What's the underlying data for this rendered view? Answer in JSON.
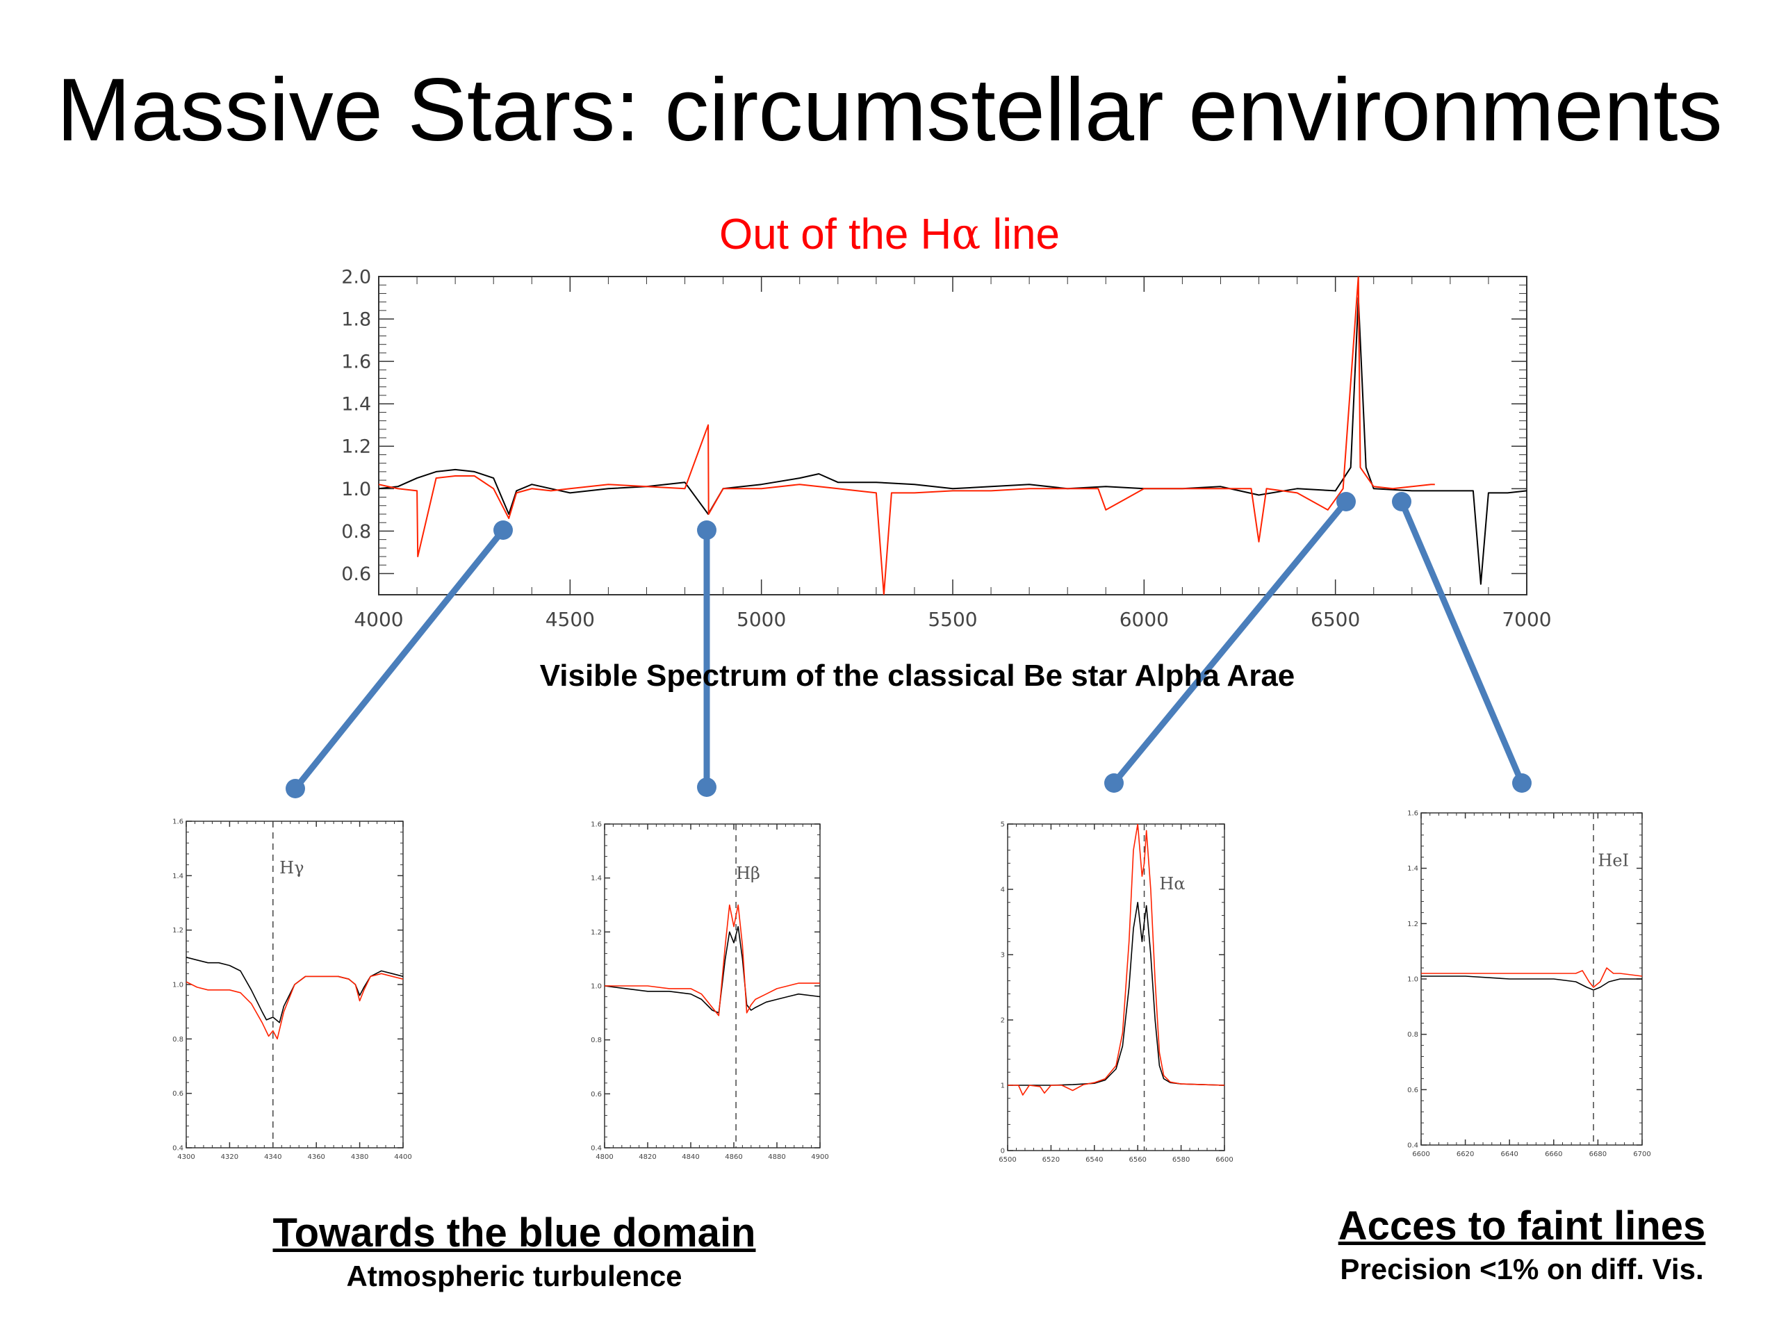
{
  "title": "Massive Stars: circumstellar environments",
  "subtitle_pre": "Out of the H",
  "subtitle_greek": "α",
  "subtitle_post": " line",
  "caption": "Visible Spectrum of the classical Be star Alpha Arae",
  "notes": {
    "left_heading": "Towards the blue domain",
    "left_sub": "Atmospheric turbulence",
    "right_heading": "Acces to faint lines",
    "right_sub": "Precision <1% on diff. Vis."
  },
  "colors": {
    "series_black": "#000000",
    "series_red": "#ff2200",
    "connector": "#4a7ebb",
    "subtitle": "#ff0000"
  },
  "chart_data": [
    {
      "type": "line",
      "id": "main",
      "xlim": [
        4000,
        7000
      ],
      "ylim": [
        0.5,
        2.0
      ],
      "xticks": [
        4000,
        4500,
        5000,
        5500,
        6000,
        6500,
        7000
      ],
      "yticks": [
        0.6,
        0.8,
        1.0,
        1.2,
        1.4,
        1.6,
        1.8,
        2.0
      ],
      "ytick_labels": [
        "0.6",
        "0.8",
        "1.0",
        "1.2",
        "1.4",
        "1.6",
        "1.8",
        "2.0"
      ],
      "series": [
        {
          "color": "#000000",
          "x": [
            4000,
            4050,
            4100,
            4150,
            4200,
            4250,
            4300,
            4340,
            4360,
            4400,
            4450,
            4500,
            4600,
            4700,
            4800,
            4861,
            4900,
            5000,
            5100,
            5150,
            5200,
            5300,
            5400,
            5500,
            5600,
            5700,
            5800,
            5900,
            6000,
            6100,
            6200,
            6300,
            6400,
            6500,
            6540,
            6560,
            6580,
            6600,
            6700,
            6800,
            6860,
            6880,
            6900,
            6950,
            7000
          ],
          "y": [
            1.0,
            1.01,
            1.05,
            1.08,
            1.09,
            1.08,
            1.05,
            0.88,
            0.99,
            1.02,
            1.0,
            0.98,
            1.0,
            1.01,
            1.03,
            0.88,
            1.0,
            1.02,
            1.05,
            1.07,
            1.03,
            1.03,
            1.02,
            1.0,
            1.01,
            1.02,
            1.0,
            1.01,
            1.0,
            1.0,
            1.01,
            0.97,
            1.0,
            0.99,
            1.1,
            1.9,
            1.1,
            1.0,
            0.99,
            0.99,
            0.99,
            0.55,
            0.98,
            0.98,
            0.99
          ]
        },
        {
          "color": "#ff2200",
          "x": [
            4000,
            4050,
            4100,
            4102,
            4150,
            4200,
            4250,
            4300,
            4340,
            4360,
            4400,
            4450,
            4500,
            4600,
            4700,
            4800,
            4861,
            4862,
            4900,
            5000,
            5100,
            5200,
            5300,
            5320,
            5340,
            5400,
            5500,
            5600,
            5700,
            5800,
            5880,
            5900,
            5950,
            6000,
            6100,
            6200,
            6280,
            6300,
            6320,
            6400,
            6480,
            6520,
            6560,
            6565,
            6600,
            6650,
            6700,
            6750,
            6760
          ],
          "y": [
            1.02,
            1.0,
            0.99,
            0.68,
            1.05,
            1.06,
            1.06,
            1.0,
            0.86,
            0.98,
            1.0,
            0.99,
            1.0,
            1.02,
            1.01,
            1.0,
            1.3,
            0.88,
            1.0,
            1.0,
            1.02,
            1.0,
            0.98,
            0.5,
            0.98,
            0.98,
            0.99,
            0.99,
            1.0,
            1.0,
            1.0,
            0.9,
            0.95,
            1.0,
            1.0,
            1.0,
            1.0,
            0.75,
            1.0,
            0.98,
            0.9,
            1.0,
            2.0,
            1.1,
            1.01,
            1.0,
            1.01,
            1.02,
            1.02
          ]
        }
      ]
    },
    {
      "type": "line",
      "id": "inset-hgamma",
      "line_label": "Hγ",
      "line_x": 4340,
      "xlim": [
        4300,
        4400
      ],
      "ylim": [
        0.4,
        1.6
      ],
      "xticks": [
        4300,
        4320,
        4340,
        4360,
        4380,
        4400
      ],
      "yticks": [
        0.4,
        0.6,
        0.8,
        1.0,
        1.2,
        1.4,
        1.6
      ],
      "ytick_labels": [
        "0.4",
        "0.6",
        "0.8",
        "1.0",
        "1.2",
        "1.4",
        "1.6"
      ],
      "series": [
        {
          "color": "#000000",
          "x": [
            4300,
            4305,
            4310,
            4315,
            4320,
            4325,
            4330,
            4335,
            4337,
            4340,
            4343,
            4345,
            4350,
            4355,
            4360,
            4365,
            4370,
            4375,
            4378,
            4380,
            4382,
            4385,
            4390,
            4395,
            4400
          ],
          "y": [
            1.1,
            1.09,
            1.08,
            1.08,
            1.07,
            1.05,
            0.98,
            0.9,
            0.87,
            0.88,
            0.86,
            0.92,
            1.0,
            1.03,
            1.03,
            1.03,
            1.03,
            1.02,
            1.0,
            0.96,
            0.99,
            1.03,
            1.05,
            1.04,
            1.03
          ]
        },
        {
          "color": "#ff2200",
          "x": [
            4300,
            4305,
            4310,
            4315,
            4320,
            4325,
            4330,
            4335,
            4338,
            4340,
            4342,
            4345,
            4350,
            4355,
            4360,
            4365,
            4370,
            4375,
            4378,
            4380,
            4382,
            4385,
            4390,
            4395,
            4400
          ],
          "y": [
            1.01,
            0.99,
            0.98,
            0.98,
            0.98,
            0.97,
            0.93,
            0.86,
            0.81,
            0.83,
            0.8,
            0.9,
            1.0,
            1.03,
            1.03,
            1.03,
            1.03,
            1.02,
            1.0,
            0.94,
            0.98,
            1.03,
            1.04,
            1.03,
            1.02
          ]
        }
      ]
    },
    {
      "type": "line",
      "id": "inset-hbeta",
      "line_label": "Hβ",
      "line_x": 4861,
      "xlim": [
        4800,
        4900
      ],
      "ylim": [
        0.4,
        1.6
      ],
      "xticks": [
        4800,
        4820,
        4840,
        4860,
        4880,
        4900
      ],
      "yticks": [
        0.4,
        0.6,
        0.8,
        1.0,
        1.2,
        1.4,
        1.6
      ],
      "ytick_labels": [
        "0.4",
        "0.6",
        "0.8",
        "1.0",
        "1.2",
        "1.4",
        "1.6"
      ],
      "series": [
        {
          "color": "#000000",
          "x": [
            4800,
            4810,
            4820,
            4830,
            4840,
            4845,
            4850,
            4853,
            4856,
            4858,
            4860,
            4862,
            4864,
            4866,
            4868,
            4870,
            4875,
            4880,
            4885,
            4890,
            4900
          ],
          "y": [
            1.0,
            0.99,
            0.98,
            0.98,
            0.97,
            0.95,
            0.91,
            0.9,
            1.1,
            1.2,
            1.16,
            1.22,
            1.1,
            0.93,
            0.91,
            0.92,
            0.94,
            0.95,
            0.96,
            0.97,
            0.96
          ]
        },
        {
          "color": "#ff2200",
          "x": [
            4800,
            4810,
            4820,
            4830,
            4840,
            4845,
            4850,
            4853,
            4856,
            4858,
            4860,
            4862,
            4864,
            4866,
            4868,
            4870,
            4875,
            4880,
            4885,
            4890,
            4900
          ],
          "y": [
            1.0,
            1.0,
            1.0,
            0.99,
            0.99,
            0.97,
            0.92,
            0.89,
            1.15,
            1.3,
            1.22,
            1.3,
            1.15,
            0.9,
            0.93,
            0.95,
            0.97,
            0.99,
            1.0,
            1.01,
            1.01
          ]
        }
      ]
    },
    {
      "type": "line",
      "id": "inset-halpha",
      "line_label": "Hα",
      "line_x": 6563,
      "xlim": [
        6500,
        6600
      ],
      "ylim": [
        0,
        5
      ],
      "xticks": [
        6500,
        6520,
        6540,
        6560,
        6580,
        6600
      ],
      "yticks": [
        0,
        1,
        2,
        3,
        4,
        5
      ],
      "ytick_labels": [
        "0",
        "1",
        "2",
        "3",
        "4",
        "5"
      ],
      "series": [
        {
          "color": "#000000",
          "x": [
            6500,
            6510,
            6520,
            6530,
            6540,
            6545,
            6550,
            6553,
            6556,
            6558,
            6560,
            6562,
            6563,
            6564,
            6566,
            6568,
            6570,
            6572,
            6575,
            6580,
            6590,
            6600
          ],
          "y": [
            1.0,
            1.0,
            1.0,
            1.01,
            1.03,
            1.08,
            1.25,
            1.6,
            2.5,
            3.4,
            3.8,
            3.2,
            3.5,
            3.75,
            3.0,
            2.0,
            1.3,
            1.1,
            1.04,
            1.02,
            1.01,
            1.0
          ]
        },
        {
          "color": "#ff2200",
          "x": [
            6500,
            6505,
            6507,
            6510,
            6515,
            6517,
            6520,
            6525,
            6530,
            6535,
            6540,
            6545,
            6550,
            6553,
            6556,
            6558,
            6560,
            6562,
            6563,
            6564,
            6566,
            6568,
            6570,
            6572,
            6575,
            6580,
            6590,
            6600
          ],
          "y": [
            1.0,
            1.0,
            0.85,
            1.0,
            0.98,
            0.88,
            1.0,
            1.0,
            0.92,
            1.01,
            1.04,
            1.1,
            1.3,
            1.8,
            3.2,
            4.6,
            5.0,
            4.2,
            4.4,
            4.9,
            4.0,
            2.6,
            1.5,
            1.15,
            1.05,
            1.02,
            1.01,
            1.0
          ]
        }
      ]
    },
    {
      "type": "line",
      "id": "inset-hei",
      "line_label": "HeI",
      "line_x": 6678,
      "xlim": [
        6600,
        6700
      ],
      "ylim": [
        0.4,
        1.6
      ],
      "xticks": [
        6600,
        6620,
        6640,
        6660,
        6680,
        6700
      ],
      "yticks": [
        0.4,
        0.6,
        0.8,
        1.0,
        1.2,
        1.4,
        1.6
      ],
      "ytick_labels": [
        "0.4",
        "0.6",
        "0.8",
        "1.0",
        "1.2",
        "1.4",
        "1.6"
      ],
      "series": [
        {
          "color": "#000000",
          "x": [
            6600,
            6620,
            6640,
            6660,
            6670,
            6675,
            6678,
            6681,
            6685,
            6690,
            6700
          ],
          "y": [
            1.01,
            1.01,
            1.0,
            1.0,
            0.99,
            0.97,
            0.96,
            0.97,
            0.99,
            1.0,
            1.0
          ]
        },
        {
          "color": "#ff2200",
          "x": [
            6600,
            6620,
            6640,
            6660,
            6670,
            6673,
            6676,
            6678,
            6681,
            6684,
            6687,
            6690,
            6700
          ],
          "y": [
            1.02,
            1.02,
            1.02,
            1.02,
            1.02,
            1.03,
            0.99,
            0.97,
            0.99,
            1.04,
            1.02,
            1.02,
            1.01
          ]
        }
      ]
    }
  ]
}
